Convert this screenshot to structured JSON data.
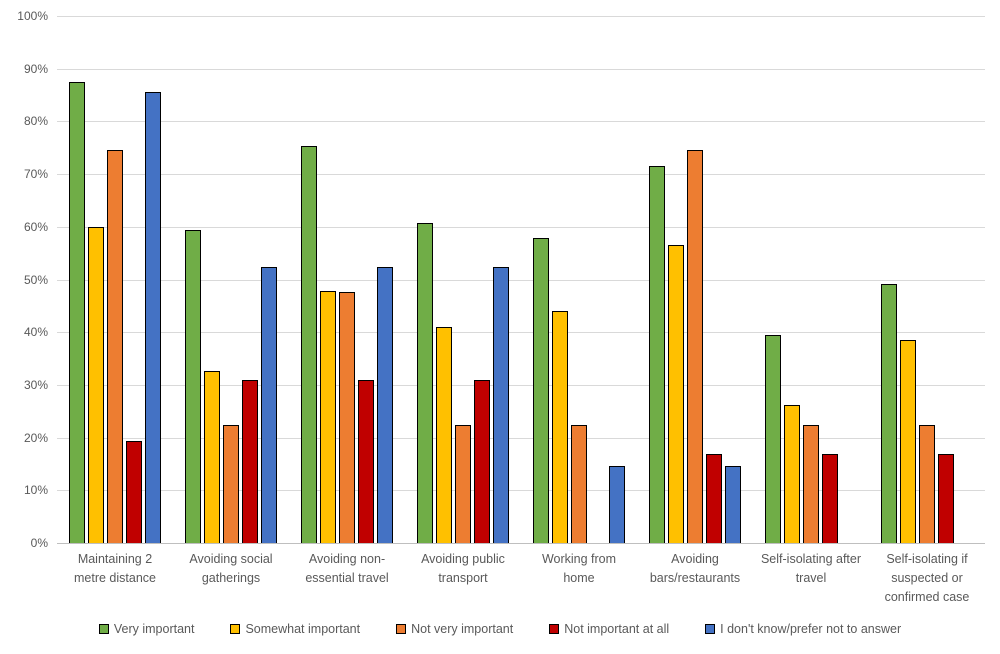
{
  "chart_data": {
    "type": "bar",
    "title": "",
    "xlabel": "",
    "ylabel": "",
    "ylim": [
      0,
      100
    ],
    "y_tick_step": 10,
    "y_tick_labels": [
      "0%",
      "10%",
      "20%",
      "30%",
      "40%",
      "50%",
      "60%",
      "70%",
      "80%",
      "90%",
      "100%"
    ],
    "grid": "horizontal",
    "legend_position": "bottom",
    "gridline_color": "#d9d9d9",
    "text_color": "#595959",
    "bar_border_color": "#000000",
    "categories": [
      "Maintaining 2 metre distance",
      "Avoiding social gatherings",
      "Avoiding non-essential travel",
      "Avoiding public transport",
      "Working from home",
      "Avoiding bars/restaurants",
      "Self-isolating after travel",
      "Self-isolating if suspected or confirmed case"
    ],
    "category_label_lines": [
      [
        "Maintaining 2",
        "metre distance"
      ],
      [
        "Avoiding social",
        "gatherings"
      ],
      [
        "Avoiding non-",
        "essential travel"
      ],
      [
        "Avoiding public",
        "transport"
      ],
      [
        "Working from",
        "home"
      ],
      [
        "Avoiding",
        "bars/restaurants"
      ],
      [
        "Self-isolating after",
        "travel"
      ],
      [
        "Self-isolating if",
        "suspected or",
        "confirmed case"
      ]
    ],
    "series": [
      {
        "name": "Very important",
        "color": "#70AD47",
        "values": [
          87.4,
          59.4,
          75.3,
          60.7,
          57.9,
          71.5,
          39.5,
          49.1
        ]
      },
      {
        "name": "Somewhat important",
        "color": "#FFC000",
        "values": [
          60.0,
          32.6,
          47.8,
          41.0,
          44.0,
          56.5,
          26.1,
          38.6
        ]
      },
      {
        "name": "Not very important",
        "color": "#ED7D31",
        "values": [
          74.6,
          22.3,
          47.7,
          22.3,
          22.3,
          74.6,
          22.3,
          22.3
        ]
      },
      {
        "name": "Not important at all",
        "color": "#C00000",
        "values": [
          19.3,
          31.0,
          31.0,
          31.0,
          0,
          16.9,
          16.9,
          16.9
        ]
      },
      {
        "name": "I don't know/prefer not to answer",
        "color": "#4472C4",
        "values": [
          85.5,
          52.3,
          52.3,
          52.3,
          14.7,
          14.7,
          0,
          0
        ]
      }
    ]
  }
}
